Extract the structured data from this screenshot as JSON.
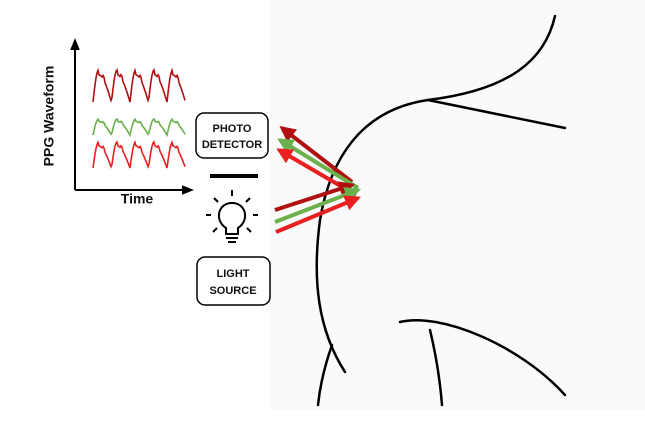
{
  "axes": {
    "y_label": "PPG Waveform",
    "x_label": "Time"
  },
  "detector": {
    "lines": [
      "PHOTO",
      "DETECTOR"
    ]
  },
  "source": {
    "lines": [
      "LIGHT",
      "SOURCE"
    ]
  }
}
